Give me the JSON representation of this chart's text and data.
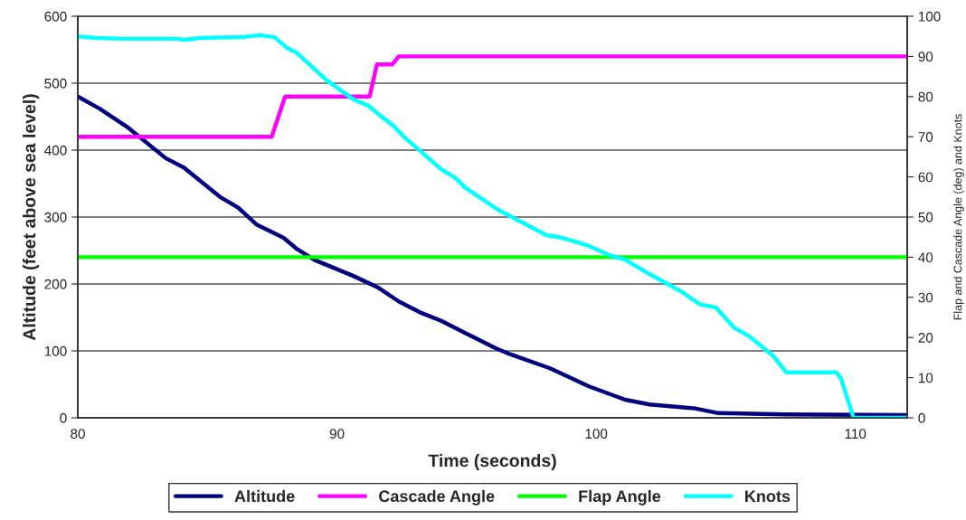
{
  "chart_data": {
    "type": "line",
    "xlabel": "Time (seconds)",
    "ylabel": "Altitude (feet above sea level)",
    "y2label": "Flap and Cascade Angle (deg) and Knots",
    "xlim": [
      80,
      112
    ],
    "xticks": [
      80,
      90,
      100,
      110
    ],
    "ylim": [
      0,
      600
    ],
    "yticks": [
      0,
      100,
      200,
      300,
      400,
      500,
      600
    ],
    "y2lim": [
      0,
      100
    ],
    "y2ticks": [
      0,
      10,
      20,
      30,
      40,
      50,
      60,
      70,
      80,
      90,
      100
    ],
    "grid": "y",
    "legend": "bottom",
    "marker": "none",
    "line_style": "solid",
    "series": [
      {
        "name": "Altitude",
        "color": "#000080",
        "x": [
          80,
          80.84,
          81.89,
          83.39,
          84.09,
          85.49,
          86.19,
          86.89,
          87.94,
          88.43,
          89.13,
          90.63,
          91.57,
          92.38,
          93.18,
          94.02,
          94.93,
          96.12,
          96.68,
          98.22,
          99.72,
          101.12,
          102.06,
          103.81,
          104.72,
          107.31,
          112
        ],
        "values": [
          480,
          462,
          435,
          388,
          374,
          330,
          314,
          289,
          269,
          253,
          236,
          212,
          195,
          174,
          158,
          145,
          127,
          104,
          95,
          74,
          47,
          27,
          20,
          14,
          7,
          5,
          4
        ]
      },
      {
        "name": "Cascade Angle",
        "color": "#ff00ff",
        "axis": "y2",
        "x": [
          80,
          87.48,
          88.0,
          91.26,
          91.54,
          92.13,
          92.38,
          112
        ],
        "values": [
          70,
          70,
          80,
          80,
          88,
          88,
          90,
          90
        ]
      },
      {
        "name": "Flap Angle",
        "color": "#00ff00",
        "axis": "y2",
        "x": [
          80,
          112
        ],
        "values": [
          40,
          40
        ]
      },
      {
        "name": "Knots",
        "color": "#00ffff",
        "axis": "y2",
        "x": [
          80,
          80.73,
          81.78,
          83.88,
          84.09,
          84.69,
          86.33,
          87.03,
          87.59,
          88.08,
          88.43,
          89.58,
          90.63,
          91.22,
          91.68,
          92.13,
          92.62,
          94.02,
          94.58,
          94.93,
          96.22,
          98.08,
          98.57,
          99.27,
          99.72,
          100.52,
          101.12,
          102.06,
          103.32,
          104.02,
          104.62,
          105.31,
          105.91,
          106.82,
          107.34,
          109.27,
          109.44,
          109.93,
          112
        ],
        "values": [
          95,
          94.6,
          94.4,
          94.4,
          94.1,
          94.6,
          94.8,
          95.3,
          94.8,
          92.1,
          91,
          84.2,
          79.3,
          77.7,
          75.2,
          73,
          69.8,
          61.9,
          59.7,
          57.4,
          51.8,
          45.5,
          45,
          43.7,
          42.8,
          40.5,
          39.4,
          35.8,
          31.3,
          28.2,
          27.5,
          22.5,
          20.3,
          15.5,
          11.3,
          11.3,
          9.9,
          0,
          0
        ]
      }
    ]
  }
}
